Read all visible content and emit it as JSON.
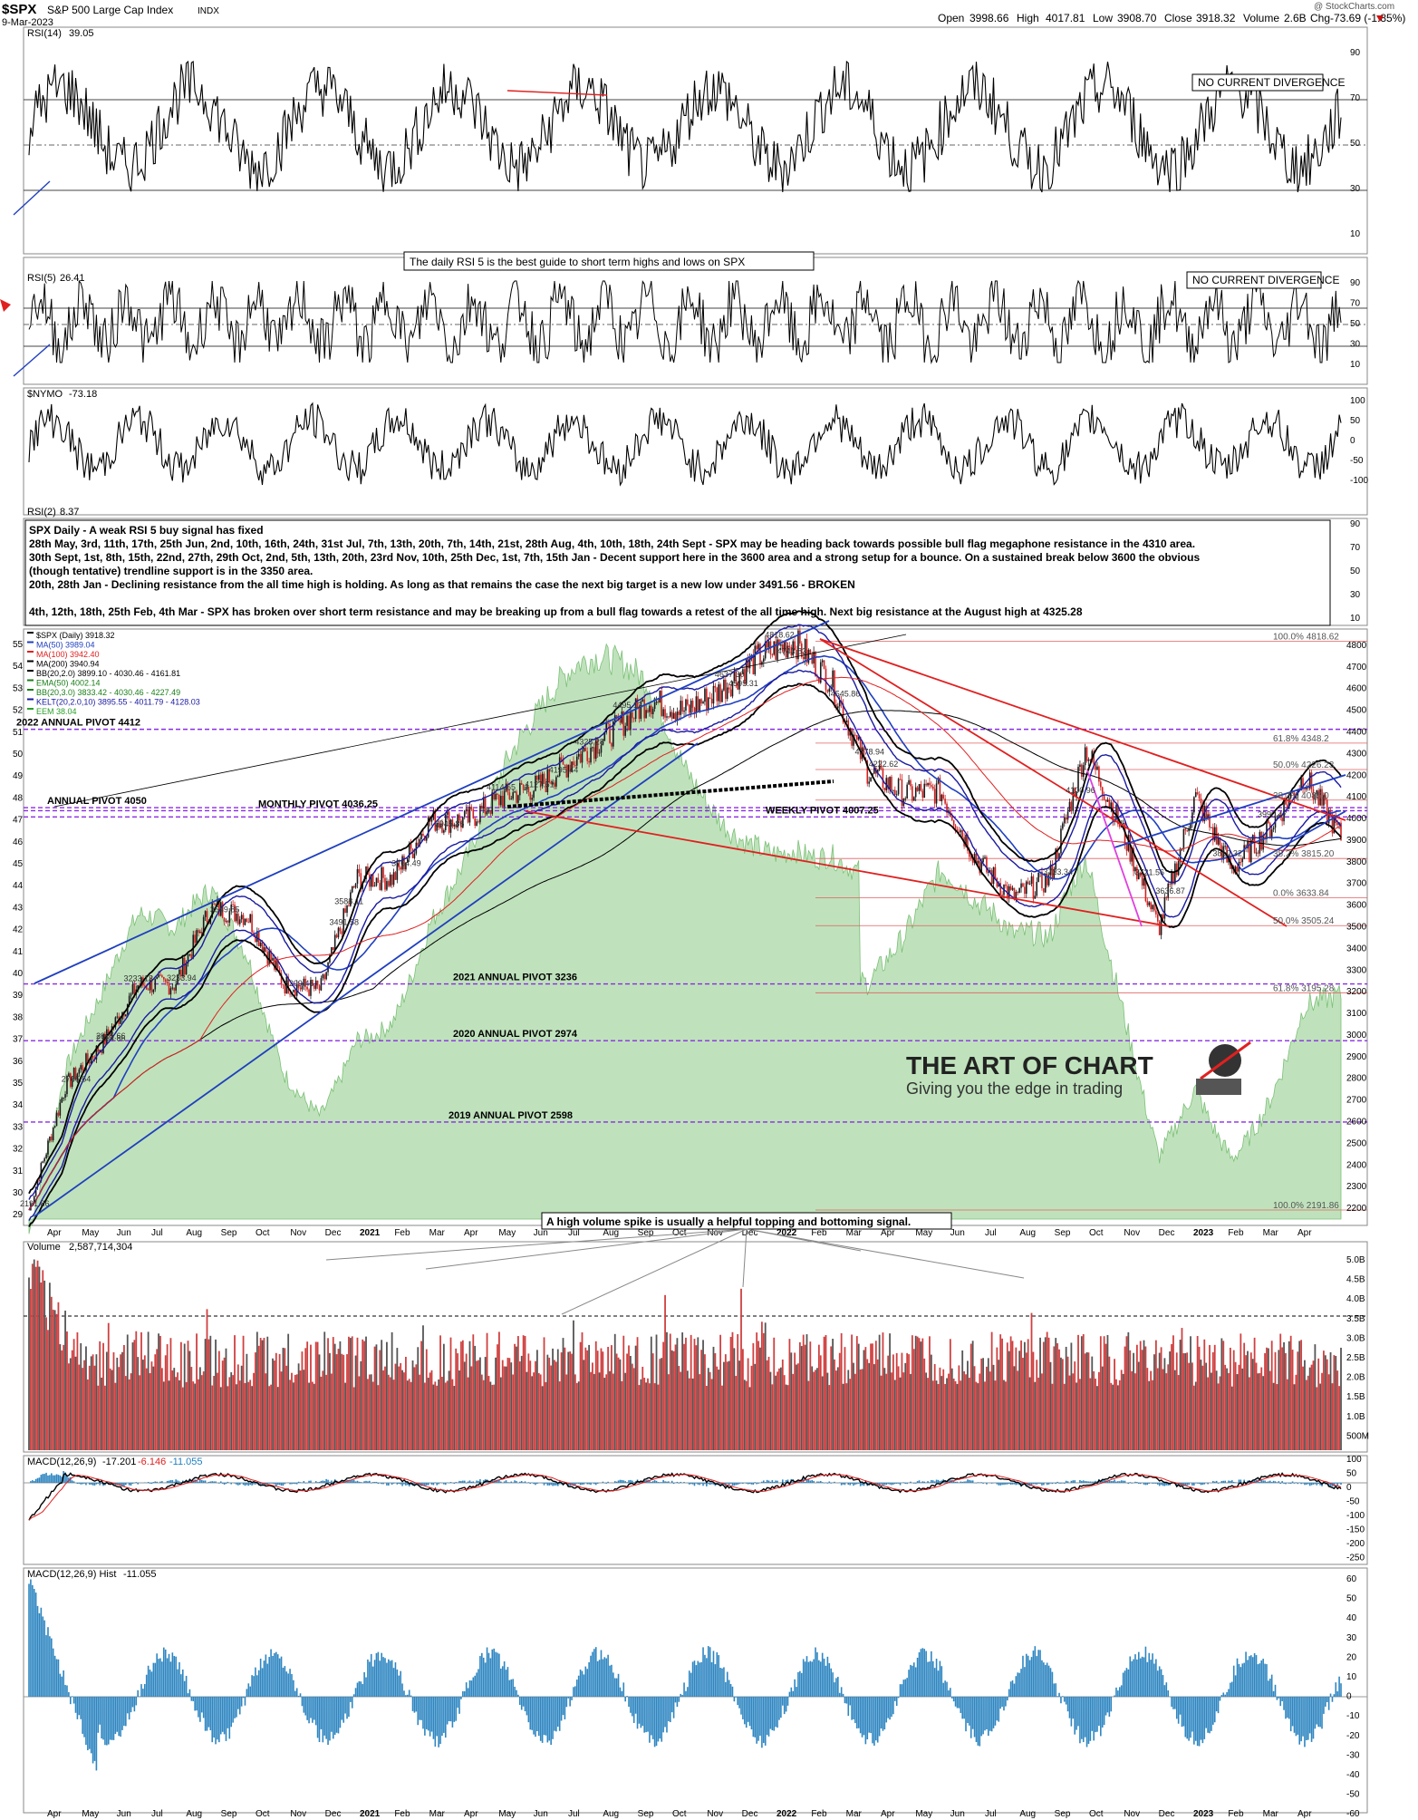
{
  "header": {
    "symbol": "$SPX",
    "name": "S&P 500 Large Cap Index",
    "exchange": "INDX",
    "date": "9-Mar-2023",
    "watermark": "@ StockCharts.com",
    "ohlc": {
      "open_label": "Open",
      "open": "3998.66",
      "high_label": "High",
      "high": "4017.81",
      "low_label": "Low",
      "low": "3908.70",
      "close_label": "Close",
      "close": "3918.32",
      "volume_label": "Volume",
      "volume": "2.6B",
      "chg_label": "Chg",
      "chg": "-73.69 (-1.85%)"
    }
  },
  "panels": {
    "rsi14": {
      "label": "RSI(14)",
      "value": "39.05",
      "ticks": [
        "90",
        "70",
        "50",
        "30",
        "10"
      ],
      "box_note": "NO CURRENT DIVERGENCE"
    },
    "rsi5": {
      "label": "RSI(5)",
      "value": "26.41",
      "ticks": [
        "90",
        "70",
        "50",
        "30",
        "10"
      ],
      "box_note": "NO CURRENT DIVERGENCE",
      "banner": "The daily RSI 5 is the best guide to short term highs and lows on SPX"
    },
    "nymo": {
      "label": "$NYMO",
      "value": "-73.18",
      "ticks": [
        "100",
        "50",
        "0",
        "-50",
        "-100"
      ]
    },
    "rsi2": {
      "label": "RSI(2)",
      "value": "8.37",
      "ticks": [
        "90",
        "70",
        "50",
        "30",
        "10"
      ]
    },
    "commentary": {
      "title": "SPX Daily - A weak RSI 5 buy signal has fixed",
      "lines": [
        "28th May, 3rd, 11th, 17th, 25th Jun, 2nd, 10th, 16th, 24th, 31st Jul, 7th, 13th, 20th, 7th, 14th, 21st, 28th Aug, 4th, 10th, 18th, 24th Sept - SPX may be heading back towards possible bull flag megaphone resistance in the 4310 area.",
        "30th Sept, 1st, 8th, 15th, 22nd, 27th, 29th Oct, 2nd, 5th, 13th, 20th, 23rd Nov, 10th, 25th Dec, 1st, 7th, 15th Jan - Decent support here in the 3600 area and a strong setup for a bounce. On a sustained break below 3600 the obvious",
        "(though tentative) trendline support is in the 3350 area.",
        "20th, 28th Jan - Declining resistance from the all time high is holding. As long as that remains the case the next big target is a new low under 3491.56 - BROKEN",
        "",
        "4th, 12th, 18th, 25th Feb, 4th Mar - SPX has broken over short term resistance and may be breaking up from a bull flag towards a retest of the all time high. Next big resistance at the August high at 4325.28"
      ]
    },
    "price": {
      "legend": [
        {
          "text": "$SPX (Daily) 3918.32",
          "color": "#000000"
        },
        {
          "text": "MA(50) 3989.04",
          "color": "#1f3fbf"
        },
        {
          "text": "MA(100) 3942.40",
          "color": "#e02020"
        },
        {
          "text": "MA(200) 3940.94",
          "color": "#000000"
        },
        {
          "text": "BB(20,2.0) 3899.10 - 4030.46 - 4161.81",
          "color": "#000000"
        },
        {
          "text": "EMA(50) 4002.14",
          "color": "#1a7f1a"
        },
        {
          "text": "BB(20,3.0) 3833.42 - 4030.46 - 4227.49",
          "color": "#1a7f1a"
        },
        {
          "text": "KELT(20,2.0,10) 3895.55 - 4011.79 - 4128.03",
          "color": "#1a1aa0"
        },
        {
          "text": "EEM 38.04",
          "color": "#2aa02a"
        }
      ],
      "right_ticks": [
        "4800",
        "4700",
        "4600",
        "4500",
        "4400",
        "4300",
        "4200",
        "4100",
        "4000",
        "3900",
        "3800",
        "3700",
        "3600",
        "3500",
        "3400",
        "3300",
        "3200",
        "3100",
        "3000",
        "2900",
        "2800",
        "2700",
        "2600",
        "2500",
        "2400",
        "2300",
        "2200"
      ],
      "left_ticks": [
        "55",
        "54",
        "53",
        "52",
        "51",
        "50",
        "49",
        "48",
        "47",
        "46",
        "45",
        "44",
        "43",
        "42",
        "41",
        "40",
        "39",
        "38",
        "37",
        "36",
        "35",
        "34",
        "33",
        "32",
        "31",
        "30",
        "29"
      ],
      "pivot_labels": [
        {
          "text": "2022 ANNUAL PIVOT 4412"
        },
        {
          "text": "ANNUAL PIVOT 4050"
        },
        {
          "text": "MONTHLY PIVOT 4036.25"
        },
        {
          "text": "WEEKLY PIVOT 4007.25"
        },
        {
          "text": "2021 ANNUAL PIVOT 3236"
        },
        {
          "text": "2020 ANNUAL PIVOT 2974"
        },
        {
          "text": "2019 ANNUAL PIVOT 2598"
        }
      ],
      "fib_labels": [
        "100.0% 4818.62",
        "61.8% 4348.2",
        "50.0% 4226.23",
        "38.2% 4085.0",
        "38.2% 3815.20",
        "0.0% 3633.84",
        "50.0% 3505.24",
        "61.8% 3195.28",
        "100.0% 2191.86"
      ],
      "price_annotations": [
        "4818.62",
        "4743.83",
        "4637.30",
        "4595.31",
        "4545.86",
        "4495.12",
        "4325.28",
        "4278.94",
        "4222.62",
        "4195.44",
        "4127.51",
        "4114.65",
        "4100.96",
        "3990.47",
        "3945.86",
        "3810.32",
        "3764.49",
        "3723.34",
        "3721.56",
        "3636.87",
        "3588.11",
        "3549.85",
        "3491.58",
        "3233.13",
        "3233.94",
        "3209.45",
        "2954.86",
        "2965.66",
        "2766.64",
        "2191.86"
      ],
      "branding": {
        "title": "THE ART OF CHART",
        "subtitle": "Giving you the edge in trading"
      },
      "x_ticks": [
        "Apr",
        "May",
        "Jun",
        "Jul",
        "Aug",
        "Sep",
        "Oct",
        "Nov",
        "Dec",
        "2021",
        "Feb",
        "Mar",
        "Apr",
        "May",
        "Jun",
        "Jul",
        "Aug",
        "Sep",
        "Oct",
        "Nov",
        "Dec",
        "2022",
        "Feb",
        "Mar",
        "Apr",
        "May",
        "Jun",
        "Jul",
        "Aug",
        "Sep",
        "Oct",
        "Nov",
        "Dec",
        "2023",
        "Feb",
        "Mar",
        "Apr"
      ]
    },
    "volume": {
      "label": "Volume",
      "value": "2,587,714,304",
      "banner": "A high volume spike is usually a helpful topping and bottoming signal.",
      "ticks": [
        "5.0B",
        "4.5B",
        "4.0B",
        "3.5B",
        "3.0B",
        "2.5B",
        "2.0B",
        "1.5B",
        "1.0B",
        "500M"
      ]
    },
    "macd": {
      "label": "MACD(12,26,9)",
      "values": [
        "-17.201",
        "-6.146",
        "-11.055"
      ],
      "ticks": [
        "100",
        "50",
        "0",
        "-50",
        "-100",
        "-150",
        "-200",
        "-250"
      ]
    },
    "macd_hist": {
      "label": "MACD(12,26,9) Hist",
      "value": "-11.055",
      "ticks": [
        "60",
        "50",
        "40",
        "30",
        "20",
        "10",
        "0",
        "-10",
        "-20",
        "-30",
        "-40",
        "-50",
        "-60"
      ]
    }
  },
  "chart_data": {
    "type": "line",
    "title": "SPX Daily - A weak RSI 5 buy signal has fixed",
    "x": [
      "Mar-2020",
      "Apr-2020",
      "May-2020",
      "Jun-2020",
      "Jul-2020",
      "Aug-2020",
      "Sep-2020",
      "Oct-2020",
      "Nov-2020",
      "Dec-2020",
      "Jan-2021",
      "Feb-2021",
      "Mar-2021",
      "Apr-2021",
      "May-2021",
      "Jun-2021",
      "Jul-2021",
      "Aug-2021",
      "Sep-2021",
      "Oct-2021",
      "Nov-2021",
      "Dec-2021",
      "Jan-2022",
      "Feb-2022",
      "Mar-2022",
      "Apr-2022",
      "May-2022",
      "Jun-2022",
      "Jul-2022",
      "Aug-2022",
      "Sep-2022",
      "Oct-2022",
      "Nov-2022",
      "Dec-2022",
      "Jan-2023",
      "Feb-2023",
      "Mar-2023"
    ],
    "series": [
      {
        "name": "$SPX (Daily)",
        "values": [
          2191.86,
          2766.64,
          2954.86,
          3233.13,
          3233.13,
          3588.11,
          3549.85,
          3233.94,
          3209.45,
          3723.34,
          3723.34,
          3990.47,
          3990.47,
          4100,
          4150,
          4278.94,
          4400,
          4545.86,
          4495.12,
          4595.31,
          4743.83,
          4818.62,
          4637.3,
          4222.62,
          4114.65,
          4127.51,
          3810.32,
          3636.87,
          3721.56,
          4325.28,
          3945.86,
          3491.58,
          4100.96,
          3764.49,
          3945,
          4195.44,
          3918.32
        ]
      }
    ],
    "ylim": [
      2150,
      4850
    ],
    "ylabel": "",
    "xlabel": "",
    "grid": false,
    "legend": "top-left"
  }
}
